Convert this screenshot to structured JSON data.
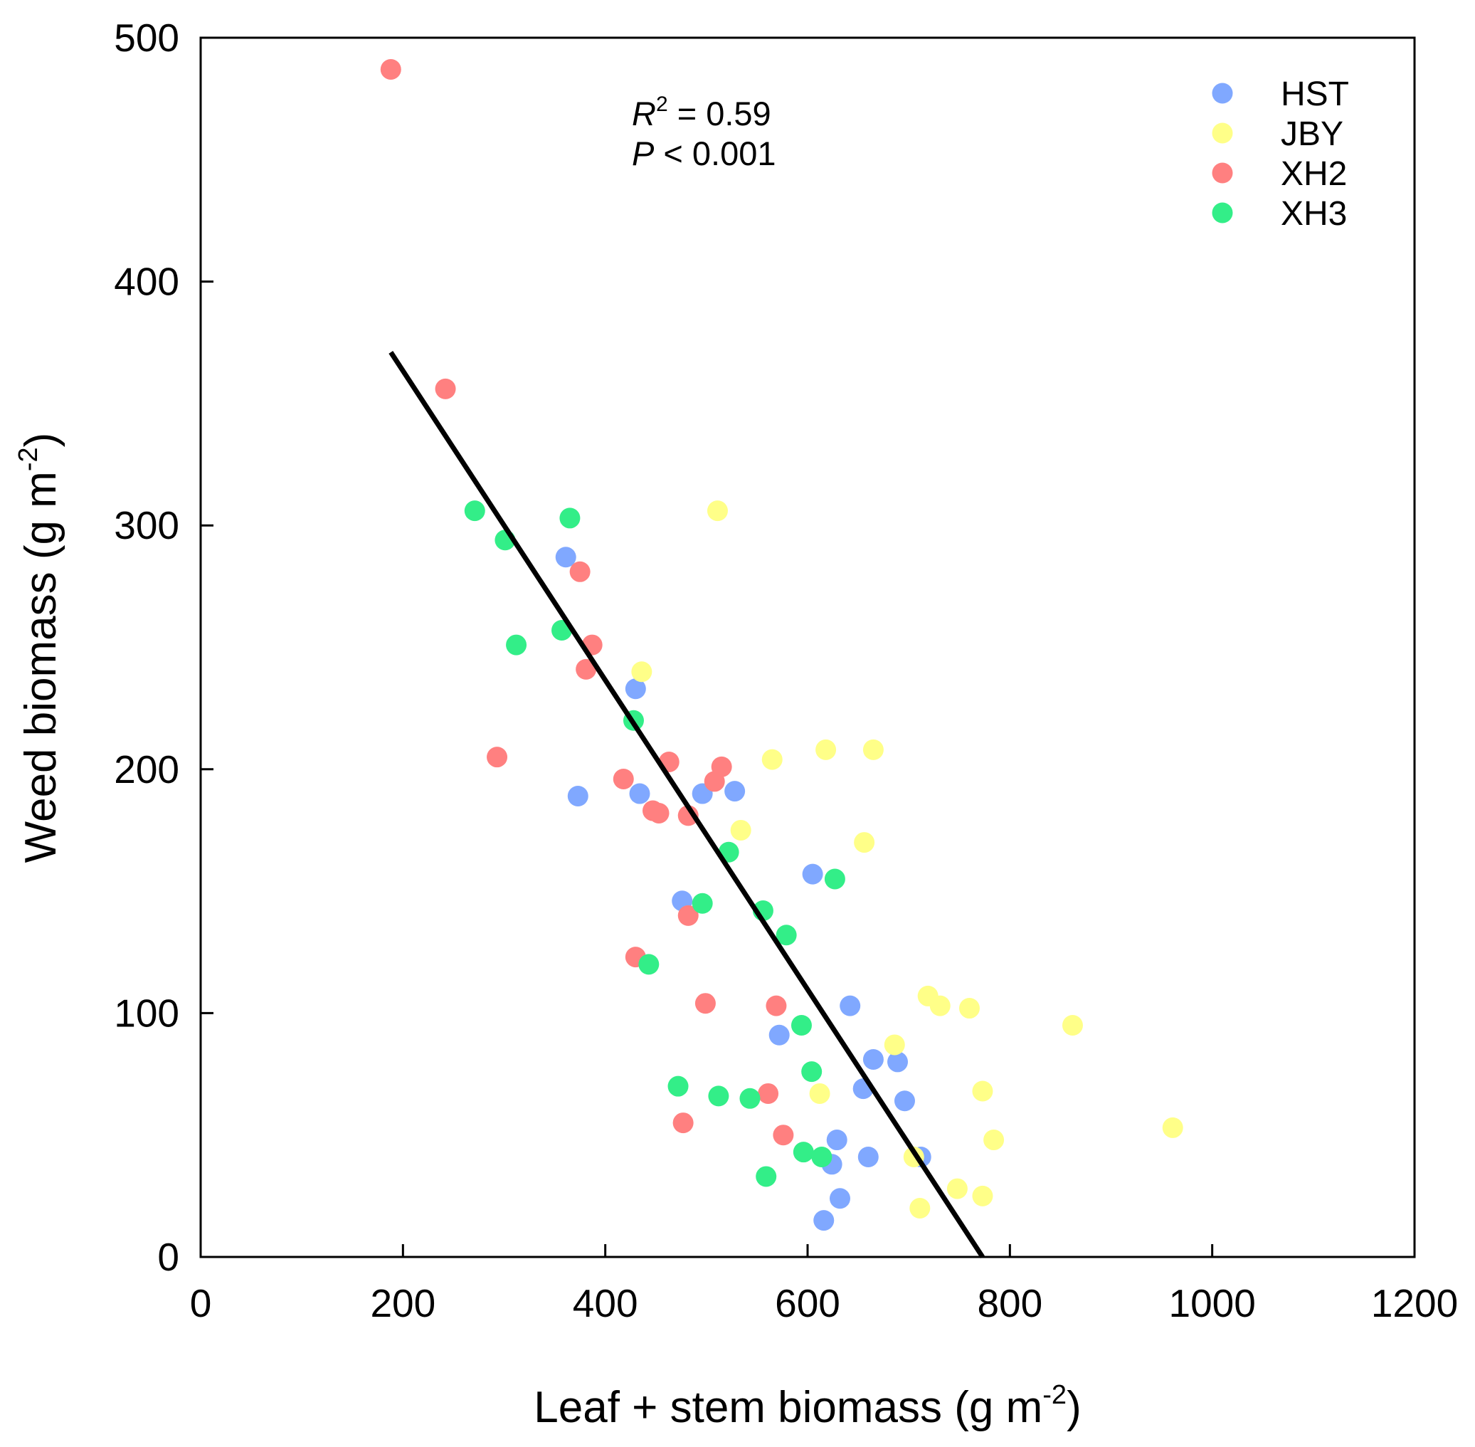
{
  "chart_data": {
    "type": "scatter",
    "title": "",
    "xlabel": "Leaf + stem biomass (g m",
    "xlabel_sup": "-2",
    "xlabel_end": ")",
    "ylabel": "Weed biomass (g m",
    "ylabel_sup": "-2",
    "ylabel_end": ")",
    "xlim": [
      0,
      1200
    ],
    "ylim": [
      0,
      500
    ],
    "xticks": [
      0,
      200,
      400,
      600,
      800,
      1000,
      1200
    ],
    "yticks": [
      0,
      100,
      200,
      300,
      400,
      500
    ],
    "grid": false,
    "legend_position": "top-right",
    "annotation": {
      "r2_symbol": "R",
      "r2_sup": "2",
      "r2_text": " = 0.59",
      "p_symbol": "P",
      "p_text": " < 0.001"
    },
    "regression_line": {
      "x": [
        188,
        773
      ],
      "y": [
        371,
        0
      ]
    },
    "series": [
      {
        "name": "HST",
        "color": "#80a8ff",
        "x": [
          361,
          430,
          434,
          373,
          496,
          528,
          476,
          605,
          642,
          572,
          665,
          689,
          655,
          696,
          629,
          624,
          660,
          712,
          632,
          616
        ],
        "y": [
          287,
          233,
          190,
          189,
          190,
          191,
          146,
          157,
          103,
          91,
          81,
          80,
          69,
          64,
          48,
          38,
          41,
          41,
          24,
          15
        ]
      },
      {
        "name": "JBY",
        "color": "#ffff88",
        "x": [
          511,
          436,
          565,
          618,
          665,
          534,
          656,
          719,
          731,
          760,
          862,
          686,
          612,
          773,
          961,
          784,
          705,
          748,
          773,
          711
        ],
        "y": [
          306,
          240,
          204,
          208,
          208,
          175,
          170,
          107,
          103,
          102,
          95,
          87,
          67,
          68,
          53,
          48,
          41,
          28,
          25,
          20
        ]
      },
      {
        "name": "XH2",
        "color": "#ff8080",
        "x": [
          188,
          242,
          375,
          387,
          381,
          293,
          463,
          418,
          515,
          508,
          447,
          453,
          482,
          482,
          430,
          499,
          569,
          561,
          576,
          477
        ],
        "y": [
          487,
          356,
          281,
          251,
          241,
          205,
          203,
          196,
          201,
          195,
          183,
          182,
          181,
          140,
          123,
          104,
          103,
          67,
          50,
          55
        ]
      },
      {
        "name": "XH3",
        "color": "#33ee88",
        "x": [
          271,
          301,
          365,
          312,
          357,
          428,
          522,
          627,
          496,
          556,
          579,
          443,
          594,
          604,
          472,
          512,
          543,
          596,
          614,
          559
        ],
        "y": [
          306,
          294,
          303,
          251,
          257,
          220,
          166,
          155,
          145,
          142,
          132,
          120,
          95,
          76,
          70,
          66,
          65,
          43,
          41,
          33
        ]
      }
    ]
  }
}
